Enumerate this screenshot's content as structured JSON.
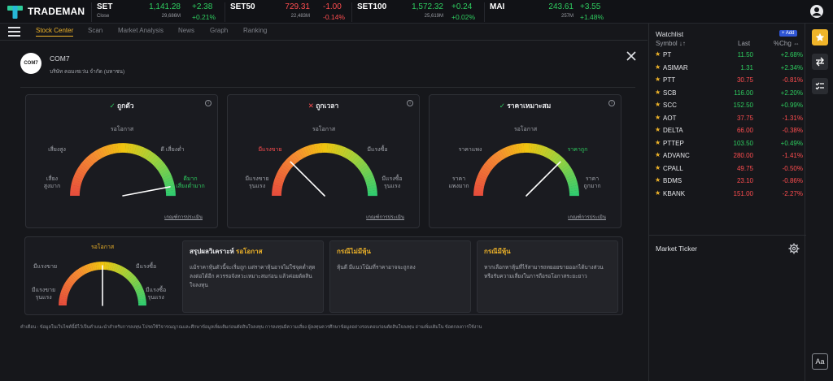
{
  "brand": {
    "name": "TRADEMAN"
  },
  "indices": [
    {
      "name": "SET",
      "sub": "Close",
      "value": "1,141.28",
      "volume": "29,686M",
      "change": "+2.38",
      "pct": "+0.21%",
      "dir": "up"
    },
    {
      "name": "SET50",
      "sub": "",
      "value": "729.31",
      "volume": "22,483M",
      "change": "-1.00",
      "pct": "-0.14%",
      "dir": "dn"
    },
    {
      "name": "SET100",
      "sub": "",
      "value": "1,572.32",
      "volume": "25,619M",
      "change": "+0.24",
      "pct": "+0.02%",
      "dir": "up"
    },
    {
      "name": "MAI",
      "sub": "",
      "value": "243.61",
      "volume": "257M",
      "change": "+3.55",
      "pct": "+1.48%",
      "dir": "up"
    }
  ],
  "nav": {
    "tabs": [
      "Stock Center",
      "Scan",
      "Market Analysis",
      "News",
      "Graph",
      "Ranking"
    ],
    "active": "Stock Center"
  },
  "stock": {
    "logo_text": "COM7",
    "code": "COM7",
    "name": "บริษัท คอมเซเว่น จำกัด (มหาชน)"
  },
  "cards": [
    {
      "title": "ถูกตัว",
      "status": "check",
      "top": "รอโอกาส",
      "left_upper": "เสี่ยงสูง",
      "right_upper": "ดี เสี่ยงต่ำ",
      "left_lower": "เสี่ยง\nสูงมาก",
      "right_lower": "ดีมาก\nเสี่ยงต่ำมาก",
      "highlight": "right_lower",
      "highlight_color": "green",
      "criteria": "เกณฑ์การประเมิน",
      "needle_pct": 0.94
    },
    {
      "title": "ถูกเวลา",
      "status": "cross",
      "top": "รอโอกาส",
      "left_upper": "มีแรงขาย",
      "right_upper": "มีแรงซื้อ",
      "left_lower": "มีแรงขาย\nรุนแรง",
      "right_lower": "มีแรงซื้อ\nรุนแรง",
      "highlight": "left_upper",
      "highlight_color": "red",
      "criteria": "เกณฑ์การประเมิน",
      "needle_pct": 0.25
    },
    {
      "title": "ราคาเหมาะสม",
      "status": "check",
      "top": "รอโอกาส",
      "left_upper": "ราคาแพง",
      "right_upper": "ราคาถูก",
      "left_lower": "ราคา\nแพงมาก",
      "right_lower": "ราคา\nถูกมาก",
      "highlight": "right_upper",
      "highlight_color": "green",
      "criteria": "เกณฑ์การประเมิน",
      "needle_pct": 0.75
    }
  ],
  "summary": {
    "gauge": {
      "top": "รอโอกาส",
      "left_upper": "มีแรงขาย",
      "right_upper": "มีแรงซื้อ",
      "left_lower": "มีแรงขาย\nรุนแรง",
      "right_lower": "มีแรงซื้อ\nรุนแรง",
      "needle_pct": 0.5
    },
    "boxes": [
      {
        "title": "สรุปผลวิเคราะห์",
        "title_highlight": "รอโอกาส",
        "body": "แม้ราคาหุ้นตัวนี้จะเริ่มถูก แต่ราคาหุ้นอาจไม่ใช่จุดต่ำสุด\nลงต่อได้อีก ควรรอจังหวะเหมาะสมก่อน แล้วค่อยตัดสิน\nใจลงทุน"
      },
      {
        "title": "กรณีไม่มีหุ้น",
        "title_highlight": "",
        "body": "หุ้นดี มีแนวโน้มที่ราคาอาจจะถูกลง"
      },
      {
        "title": "กรณีมีหุ้น",
        "title_highlight": "",
        "body": "หากเลือกหาหุ้นที่ไร้สามารถทยอยขายออกได้บางส่วน\nหรือรับความเสี่ยงในการถือรอโอกาสระยะยาว"
      }
    ]
  },
  "disclaimer": "คำเตือน : ข้อมูลในเว็บไซต์นี้มีไว้เป็นคำแนะนำสำหรับการลงทุน โปรดใช้วิจารณญาณและศึกษาข้อมูลเพิ่มเติมก่อนตัดสินใจลงทุน การลงทุนมีความเสี่ยง ผู้ลงทุนควรศึกษาข้อมูลอย่างรอบคอบก่อนตัดสินใจลงทุน อ่านเพิ่มเติมใน ข้อตกลงการใช้งาน",
  "watchlist": {
    "title": "Watchlist",
    "add_label": "+ Add",
    "headers": {
      "symbol": "Symbol ↓↑",
      "last": "Last",
      "pct": "%Chg ⇔"
    },
    "rows": [
      {
        "symbol": "PT",
        "last": "11.50",
        "pct": "+2.68%",
        "dir": "up"
      },
      {
        "symbol": "ASIMAR",
        "last": "1.31",
        "pct": "+2.34%",
        "dir": "up"
      },
      {
        "symbol": "PTT",
        "last": "30.75",
        "pct": "-0.81%",
        "dir": "dn"
      },
      {
        "symbol": "SCB",
        "last": "116.00",
        "pct": "+2.20%",
        "dir": "up"
      },
      {
        "symbol": "SCC",
        "last": "152.50",
        "pct": "+0.99%",
        "dir": "up"
      },
      {
        "symbol": "AOT",
        "last": "37.75",
        "pct": "-1.31%",
        "dir": "dn"
      },
      {
        "symbol": "DELTA",
        "last": "66.00",
        "pct": "-0.38%",
        "dir": "dn"
      },
      {
        "symbol": "PTTEP",
        "last": "103.50",
        "pct": "+0.49%",
        "dir": "up"
      },
      {
        "symbol": "ADVANC",
        "last": "280.00",
        "pct": "-1.41%",
        "dir": "dn"
      },
      {
        "symbol": "CPALL",
        "last": "49.75",
        "pct": "-0.50%",
        "dir": "dn"
      },
      {
        "symbol": "BDMS",
        "last": "23.10",
        "pct": "-0.86%",
        "dir": "dn"
      },
      {
        "symbol": "KBANK",
        "last": "151.00",
        "pct": "-2.27%",
        "dir": "dn"
      }
    ]
  },
  "market_ticker": {
    "title": "Market Ticker"
  },
  "sidebar": {
    "font_label": "Aa"
  },
  "colors": {
    "up": "#2ecc5f",
    "down": "#ff4d4f",
    "accent": "#f0b429"
  }
}
